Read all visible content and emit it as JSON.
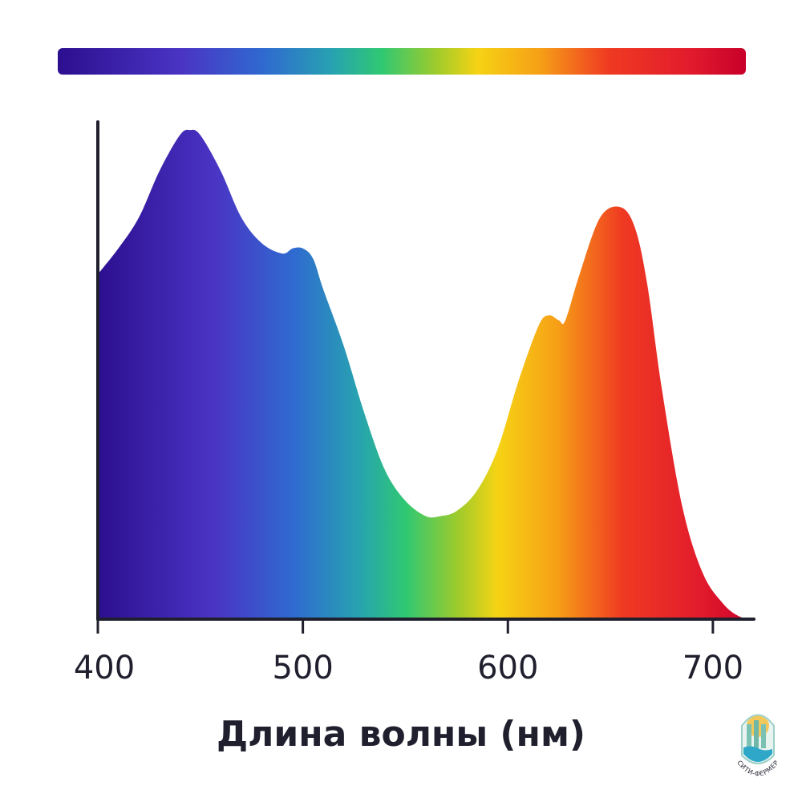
{
  "chart_data": {
    "type": "area",
    "title": "",
    "xlabel": "Длина волны (нм)",
    "ylabel": "",
    "xlim": [
      400,
      720
    ],
    "ylim": [
      0,
      1
    ],
    "xticks": [
      400,
      500,
      600,
      700
    ],
    "grid": false,
    "legend": "none",
    "series": [
      {
        "x": [
          400,
          410,
          420,
          430,
          440,
          445,
          450,
          460,
          470,
          480,
          490,
          495,
          500,
          505,
          510,
          520,
          530,
          540,
          550,
          560,
          567,
          575,
          585,
          595,
          605,
          615,
          620,
          625,
          628,
          635,
          645,
          655,
          662,
          668,
          675,
          685,
          695,
          705,
          713,
          720
        ],
        "y": [
          0.67,
          0.72,
          0.78,
          0.87,
          0.94,
          0.95,
          0.94,
          0.87,
          0.78,
          0.73,
          0.71,
          0.72,
          0.72,
          0.7,
          0.64,
          0.53,
          0.4,
          0.29,
          0.23,
          0.2,
          0.2,
          0.21,
          0.25,
          0.33,
          0.46,
          0.57,
          0.59,
          0.58,
          0.58,
          0.67,
          0.78,
          0.8,
          0.76,
          0.65,
          0.45,
          0.22,
          0.09,
          0.03,
          0.005,
          0.0
        ]
      }
    ],
    "gradient_stops": [
      {
        "offset": 0.0,
        "color": "#2c0f8f"
      },
      {
        "offset": 0.18,
        "color": "#4a34c4"
      },
      {
        "offset": 0.3,
        "color": "#2f6ad0"
      },
      {
        "offset": 0.4,
        "color": "#27a3b0"
      },
      {
        "offset": 0.47,
        "color": "#2fc873"
      },
      {
        "offset": 0.55,
        "color": "#9ecb2b"
      },
      {
        "offset": 0.61,
        "color": "#f6d314"
      },
      {
        "offset": 0.7,
        "color": "#f6a016"
      },
      {
        "offset": 0.8,
        "color": "#ef3a22"
      },
      {
        "offset": 0.92,
        "color": "#e21b2c"
      },
      {
        "offset": 1.0,
        "color": "#c8002a"
      }
    ],
    "colors": {
      "axis": "#1f1f2e",
      "logo_outline": "#9dd0c8",
      "logo_sun": "#f2c85b",
      "logo_water": "#2ea7c9"
    }
  },
  "logo": {
    "text": "СИТИ-ФЕРМЕР"
  }
}
